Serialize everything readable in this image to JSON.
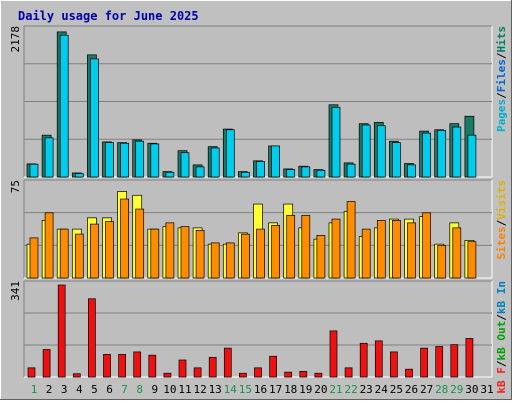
{
  "colors": {
    "frame_bg": "#c0c0c0",
    "plot_bg": "#bebebe",
    "title": "#0000aa",
    "gridline": "#808080",
    "hits_front": "#1a7a66",
    "files_back": "#00ccee",
    "pages_back": "#00ccee",
    "visits_front": "#ffff33",
    "sites_back": "#ff8c00",
    "kb_bar": "#ee1111",
    "day_weekday": "#000000",
    "day_weekend": "#1a9050",
    "legend_hits": "#008060",
    "legend_files": "#0066cc",
    "legend_pages": "#00b0d0",
    "legend_visits": "#e0b000",
    "legend_sites": "#ff8000",
    "legend_kbin": "#0080c0",
    "legend_kbout": "#00a000",
    "legend_kbf": "#ee2222",
    "legend_sep": "#000000"
  },
  "chart_data": {
    "type": "bar",
    "title": "Daily usage for June 2025",
    "categories": [
      "1",
      "2",
      "3",
      "4",
      "5",
      "6",
      "7",
      "8",
      "9",
      "10",
      "11",
      "12",
      "13",
      "14",
      "15",
      "16",
      "17",
      "18",
      "19",
      "20",
      "21",
      "22",
      "23",
      "24",
      "25",
      "26",
      "27",
      "28",
      "29",
      "30",
      "31"
    ],
    "weekend_days": [
      "1",
      "7",
      "8",
      "14",
      "15",
      "21",
      "22",
      "28",
      "29"
    ],
    "panels": [
      {
        "id": "hits-files-pages",
        "scale_max_label": "2178",
        "ylim": [
          0,
          2178
        ],
        "legend": [
          {
            "text": "Pages",
            "color_key": "legend_pages"
          },
          {
            "text": "/",
            "color_key": "legend_sep"
          },
          {
            "text": "Files",
            "color_key": "legend_files"
          },
          {
            "text": "/",
            "color_key": "legend_sep"
          },
          {
            "text": "Hits",
            "color_key": "legend_hits"
          }
        ],
        "series": [
          {
            "name": "Hits",
            "color_key": "hits_front",
            "values": [
              195,
              620,
              2150,
              60,
              1810,
              520,
              510,
              550,
              500,
              80,
              390,
              180,
              450,
              710,
              80,
              240,
              460,
              120,
              160,
              110,
              1070,
              210,
              790,
              810,
              530,
              200,
              680,
              700,
              790,
              900,
              null
            ]
          },
          {
            "name": "Files",
            "color_key": "files_back",
            "values": [
              190,
              580,
              2100,
              50,
              1750,
              510,
              500,
              530,
              490,
              70,
              360,
              150,
              430,
              700,
              70,
              230,
              460,
              110,
              150,
              100,
              1030,
              190,
              770,
              760,
              510,
              180,
              650,
              690,
              740,
              620,
              null
            ]
          }
        ]
      },
      {
        "id": "visits-sites",
        "scale_max_label": "75",
        "ylim": [
          0,
          75
        ],
        "legend": [
          {
            "text": "Sites",
            "color_key": "legend_sites"
          },
          {
            "text": "/",
            "color_key": "legend_sep"
          },
          {
            "text": "Visits",
            "color_key": "legend_visits"
          }
        ],
        "series": [
          {
            "name": "Visits",
            "color_key": "visits_front",
            "values": [
              27,
              46,
              39,
              39,
              48,
              48,
              69,
              66,
              39,
              41,
              40,
              40,
              27,
              27,
              36,
              59,
              44,
              59,
              40,
              31,
              44,
              53,
              33,
              40,
              47,
              47,
              49,
              27,
              44,
              30,
              null
            ]
          },
          {
            "name": "Sites",
            "color_key": "sites_back",
            "values": [
              32,
              52,
              39,
              35,
              43,
              45,
              63,
              55,
              39,
              44,
              41,
              38,
              28,
              28,
              35,
              39,
              42,
              50,
              50,
              34,
              47,
              61,
              39,
              46,
              46,
              44,
              52,
              26,
              40,
              29,
              null
            ]
          }
        ]
      },
      {
        "id": "kbytes",
        "scale_max_label": "341",
        "ylim": [
          0,
          341
        ],
        "legend": [
          {
            "text": "kB F",
            "color_key": "legend_kbf"
          },
          {
            "text": "/",
            "color_key": "legend_sep"
          },
          {
            "text": "kB Out",
            "color_key": "legend_kbout"
          },
          {
            "text": "/",
            "color_key": "legend_sep"
          },
          {
            "text": "kB In",
            "color_key": "legend_kbin"
          }
        ],
        "series": [
          {
            "name": "kB F",
            "color_key": "kb_bar",
            "values": [
              34,
              102,
              341,
              12,
              290,
              84,
              84,
              93,
              81,
              14,
              63,
              34,
              73,
              107,
              14,
              34,
              77,
              18,
              21,
              14,
              171,
              34,
              125,
              134,
              93,
              29,
              107,
              113,
              120,
              143,
              null
            ]
          }
        ]
      }
    ]
  }
}
